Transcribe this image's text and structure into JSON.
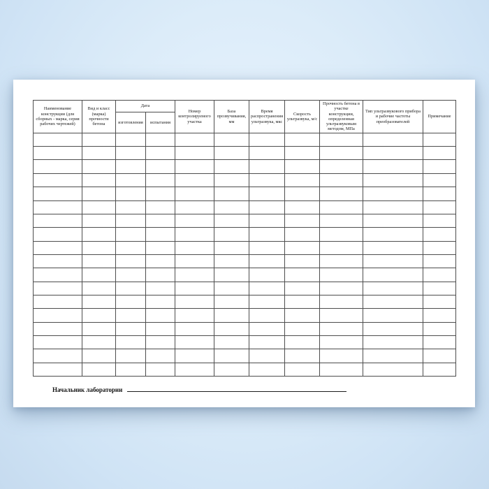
{
  "page": {
    "paper_color": "#ffffff",
    "background_color": "#d5e9fb",
    "border_color": "#4d4d4d"
  },
  "table": {
    "empty_rows": 18,
    "header": {
      "construction": "Наименование конструкции (для сборных - марка, серия рабочих чертежей)",
      "concrete_class": "Вид и класс (марка) прочности бетона",
      "date_group": "Дата",
      "date_made": "изготовления",
      "date_tested": "испытания",
      "section_number": "Номер контролируемого участка",
      "sounding_base": "База прозвучивания, мм",
      "propagation_time": "Время распространения ультразвука, мкс",
      "ultrasound_speed": "Скорость ультразвука, м/с",
      "strength": "Прочность бетона в участке конструкции, определенная ультразвуковым методом, МПа",
      "device_type": "Тип ультразвукового прибора и рабочие частоты преобразователей",
      "note": "Примечание"
    }
  },
  "footer": {
    "signature_label": "Начальник лаборатории"
  }
}
